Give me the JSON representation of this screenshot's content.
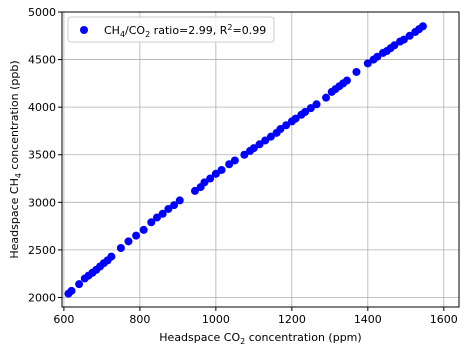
{
  "chart_data": {
    "type": "scatter",
    "title": "",
    "xlabel_rich": [
      {
        "text": "Headspace CO",
        "baseline": 0
      },
      {
        "text": "2",
        "baseline": 1
      },
      {
        "text": " concentration (ppm)",
        "baseline": 0
      }
    ],
    "ylabel_rich": [
      {
        "text": "Headspace CH",
        "baseline": 0
      },
      {
        "text": "4",
        "baseline": 1
      },
      {
        "text": " concentration (ppb)",
        "baseline": 0
      }
    ],
    "legend_rich": [
      {
        "text": "CH",
        "baseline": 0
      },
      {
        "text": "4",
        "baseline": 1
      },
      {
        "text": "/CO",
        "baseline": 0
      },
      {
        "text": "2",
        "baseline": 1
      },
      {
        "text": " ratio=2.99, R",
        "baseline": 0
      },
      {
        "text": "2",
        "baseline": -1
      },
      {
        "text": "=0.99",
        "baseline": 0
      }
    ],
    "legend_location": "upper left",
    "grid": true,
    "xlim": [
      595,
      1640
    ],
    "ylim": [
      1900,
      5000
    ],
    "xticks": [
      600,
      800,
      1000,
      1200,
      1400,
      1600
    ],
    "yticks": [
      2000,
      2500,
      3000,
      3500,
      4000,
      4500,
      5000
    ],
    "xtick_labels": [
      "600",
      "800",
      "1000",
      "1200",
      "1400",
      "1600"
    ],
    "ytick_labels": [
      "2000",
      "2500",
      "3000",
      "3500",
      "4000",
      "4500",
      "5000"
    ],
    "series": [
      {
        "name": "CH4/CO2 ratio=2.99, R2=0.99",
        "color": "#0000ff",
        "points": [
          [
            612,
            2040
          ],
          [
            620,
            2070
          ],
          [
            640,
            2140
          ],
          [
            655,
            2200
          ],
          [
            665,
            2230
          ],
          [
            675,
            2260
          ],
          [
            685,
            2290
          ],
          [
            695,
            2325
          ],
          [
            705,
            2360
          ],
          [
            715,
            2390
          ],
          [
            725,
            2430
          ],
          [
            750,
            2520
          ],
          [
            770,
            2590
          ],
          [
            790,
            2650
          ],
          [
            810,
            2710
          ],
          [
            830,
            2790
          ],
          [
            845,
            2840
          ],
          [
            860,
            2880
          ],
          [
            875,
            2930
          ],
          [
            890,
            2970
          ],
          [
            905,
            3020
          ],
          [
            945,
            3120
          ],
          [
            960,
            3160
          ],
          [
            970,
            3210
          ],
          [
            985,
            3250
          ],
          [
            1000,
            3300
          ],
          [
            1015,
            3340
          ],
          [
            1035,
            3400
          ],
          [
            1050,
            3440
          ],
          [
            1075,
            3500
          ],
          [
            1090,
            3540
          ],
          [
            1100,
            3570
          ],
          [
            1115,
            3610
          ],
          [
            1130,
            3650
          ],
          [
            1145,
            3690
          ],
          [
            1160,
            3730
          ],
          [
            1170,
            3770
          ],
          [
            1185,
            3810
          ],
          [
            1200,
            3850
          ],
          [
            1210,
            3880
          ],
          [
            1225,
            3920
          ],
          [
            1235,
            3950
          ],
          [
            1250,
            3990
          ],
          [
            1265,
            4030
          ],
          [
            1290,
            4100
          ],
          [
            1305,
            4160
          ],
          [
            1315,
            4190
          ],
          [
            1325,
            4220
          ],
          [
            1335,
            4250
          ],
          [
            1345,
            4280
          ],
          [
            1370,
            4370
          ],
          [
            1400,
            4460
          ],
          [
            1415,
            4500
          ],
          [
            1425,
            4530
          ],
          [
            1440,
            4570
          ],
          [
            1450,
            4590
          ],
          [
            1460,
            4620
          ],
          [
            1470,
            4650
          ],
          [
            1485,
            4690
          ],
          [
            1495,
            4710
          ],
          [
            1510,
            4750
          ],
          [
            1525,
            4790
          ],
          [
            1535,
            4820
          ],
          [
            1545,
            4850
          ]
        ]
      }
    ]
  }
}
